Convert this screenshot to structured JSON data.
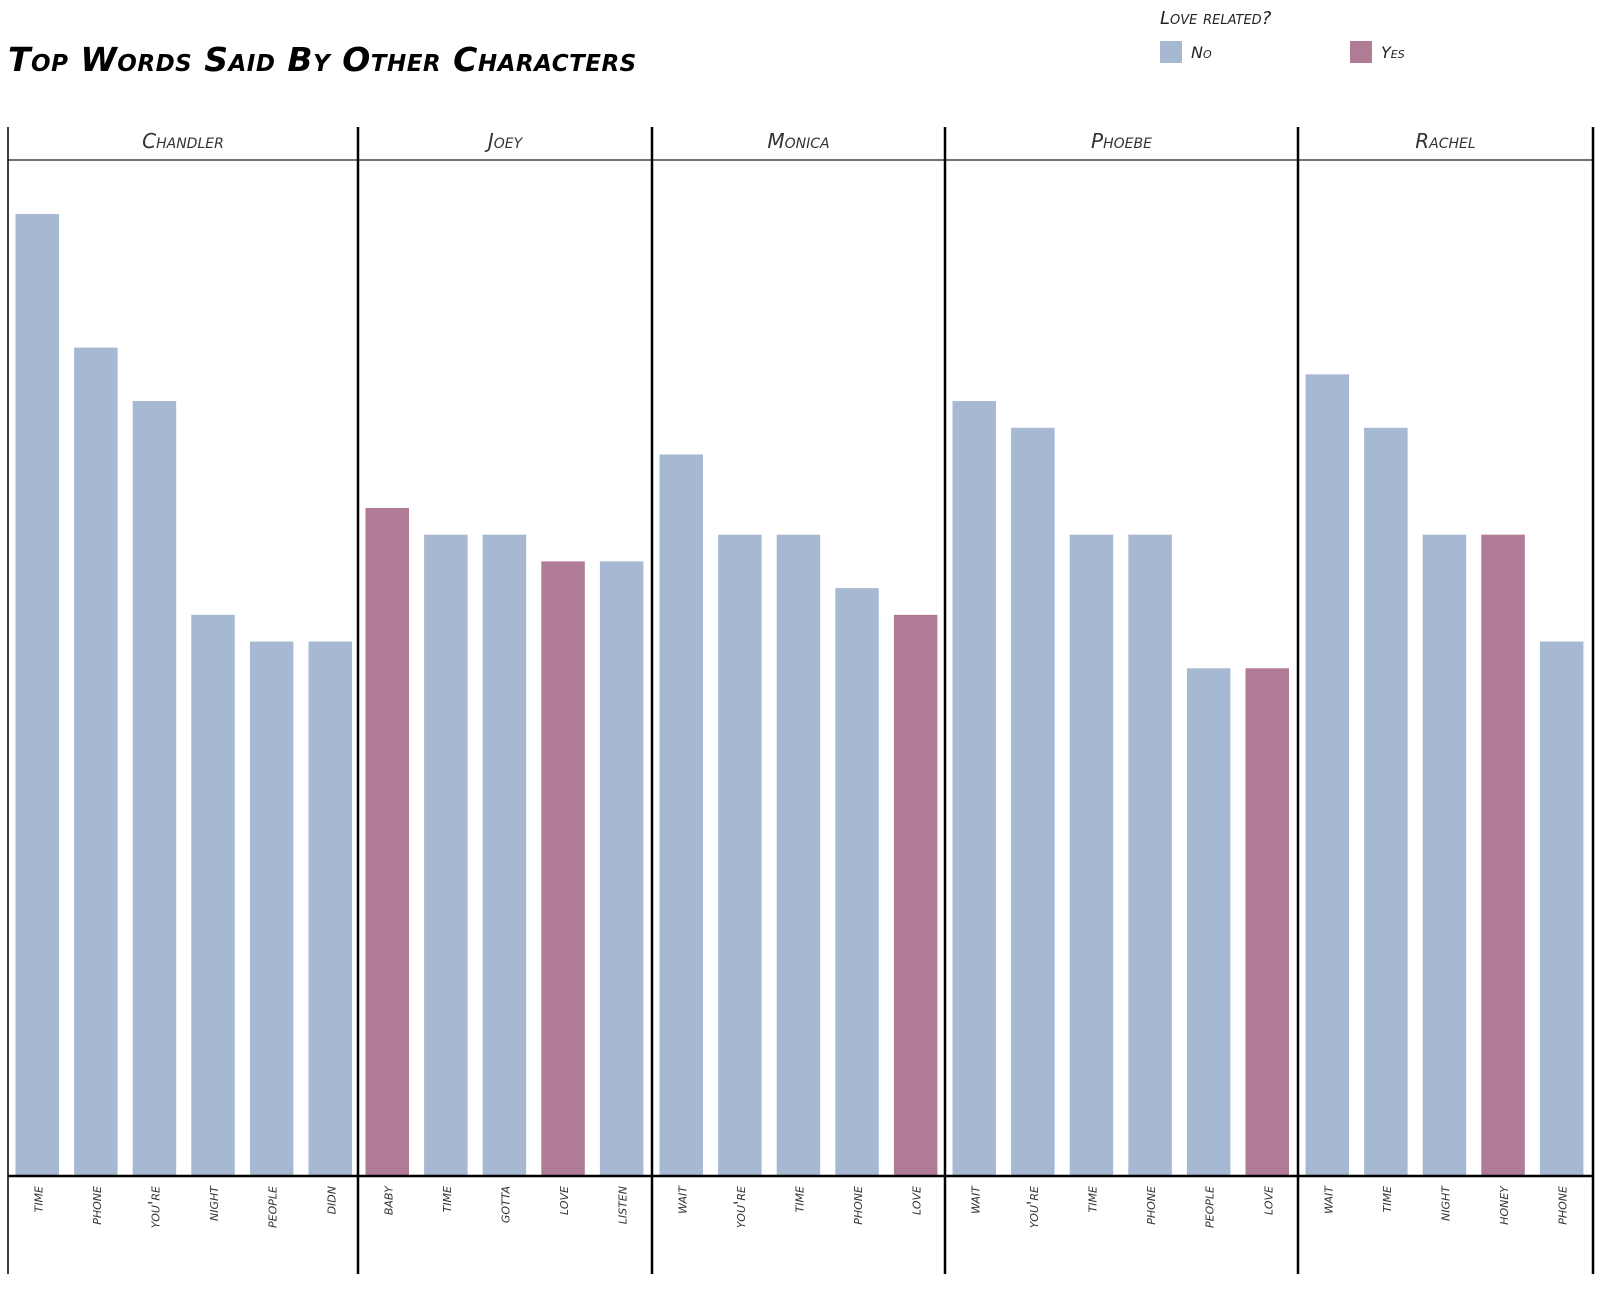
{
  "chart_data": {
    "type": "bar",
    "title": "Top Words Said By Other Characters",
    "legend": {
      "title": "Love related?",
      "placement": "top-right",
      "entries": [
        {
          "label": "No",
          "color": "#a7b8d2"
        },
        {
          "label": "Yes",
          "color": "#b07b95"
        }
      ]
    },
    "grid": false,
    "ylim": [
      0,
      36
    ],
    "panels": [
      {
        "name": "Chandler",
        "bars": [
          {
            "word": "time",
            "value": 36,
            "love_related": "No"
          },
          {
            "word": "phone",
            "value": 31,
            "love_related": "No"
          },
          {
            "word": "you're",
            "value": 29,
            "love_related": "No"
          },
          {
            "word": "night",
            "value": 21,
            "love_related": "No"
          },
          {
            "word": "people",
            "value": 20,
            "love_related": "No"
          },
          {
            "word": "didn",
            "value": 20,
            "love_related": "No"
          }
        ]
      },
      {
        "name": "Joey",
        "bars": [
          {
            "word": "baby",
            "value": 25,
            "love_related": "Yes"
          },
          {
            "word": "time",
            "value": 24,
            "love_related": "No"
          },
          {
            "word": "gotta",
            "value": 24,
            "love_related": "No"
          },
          {
            "word": "love",
            "value": 23,
            "love_related": "Yes"
          },
          {
            "word": "listen",
            "value": 23,
            "love_related": "No"
          }
        ]
      },
      {
        "name": "Monica",
        "bars": [
          {
            "word": "wait",
            "value": 27,
            "love_related": "No"
          },
          {
            "word": "you're",
            "value": 24,
            "love_related": "No"
          },
          {
            "word": "time",
            "value": 24,
            "love_related": "No"
          },
          {
            "word": "phone",
            "value": 22,
            "love_related": "No"
          },
          {
            "word": "love",
            "value": 21,
            "love_related": "Yes"
          }
        ]
      },
      {
        "name": "Phoebe",
        "bars": [
          {
            "word": "wait",
            "value": 29,
            "love_related": "No"
          },
          {
            "word": "you're",
            "value": 28,
            "love_related": "No"
          },
          {
            "word": "time",
            "value": 24,
            "love_related": "No"
          },
          {
            "word": "phone",
            "value": 24,
            "love_related": "No"
          },
          {
            "word": "people",
            "value": 19,
            "love_related": "No"
          },
          {
            "word": "love",
            "value": 19,
            "love_related": "Yes"
          }
        ]
      },
      {
        "name": "Rachel",
        "bars": [
          {
            "word": "wait",
            "value": 30,
            "love_related": "No"
          },
          {
            "word": "time",
            "value": 28,
            "love_related": "No"
          },
          {
            "word": "night",
            "value": 24,
            "love_related": "No"
          },
          {
            "word": "honey",
            "value": 24,
            "love_related": "Yes"
          },
          {
            "word": "phone",
            "value": 20,
            "love_related": "No"
          }
        ]
      }
    ]
  }
}
